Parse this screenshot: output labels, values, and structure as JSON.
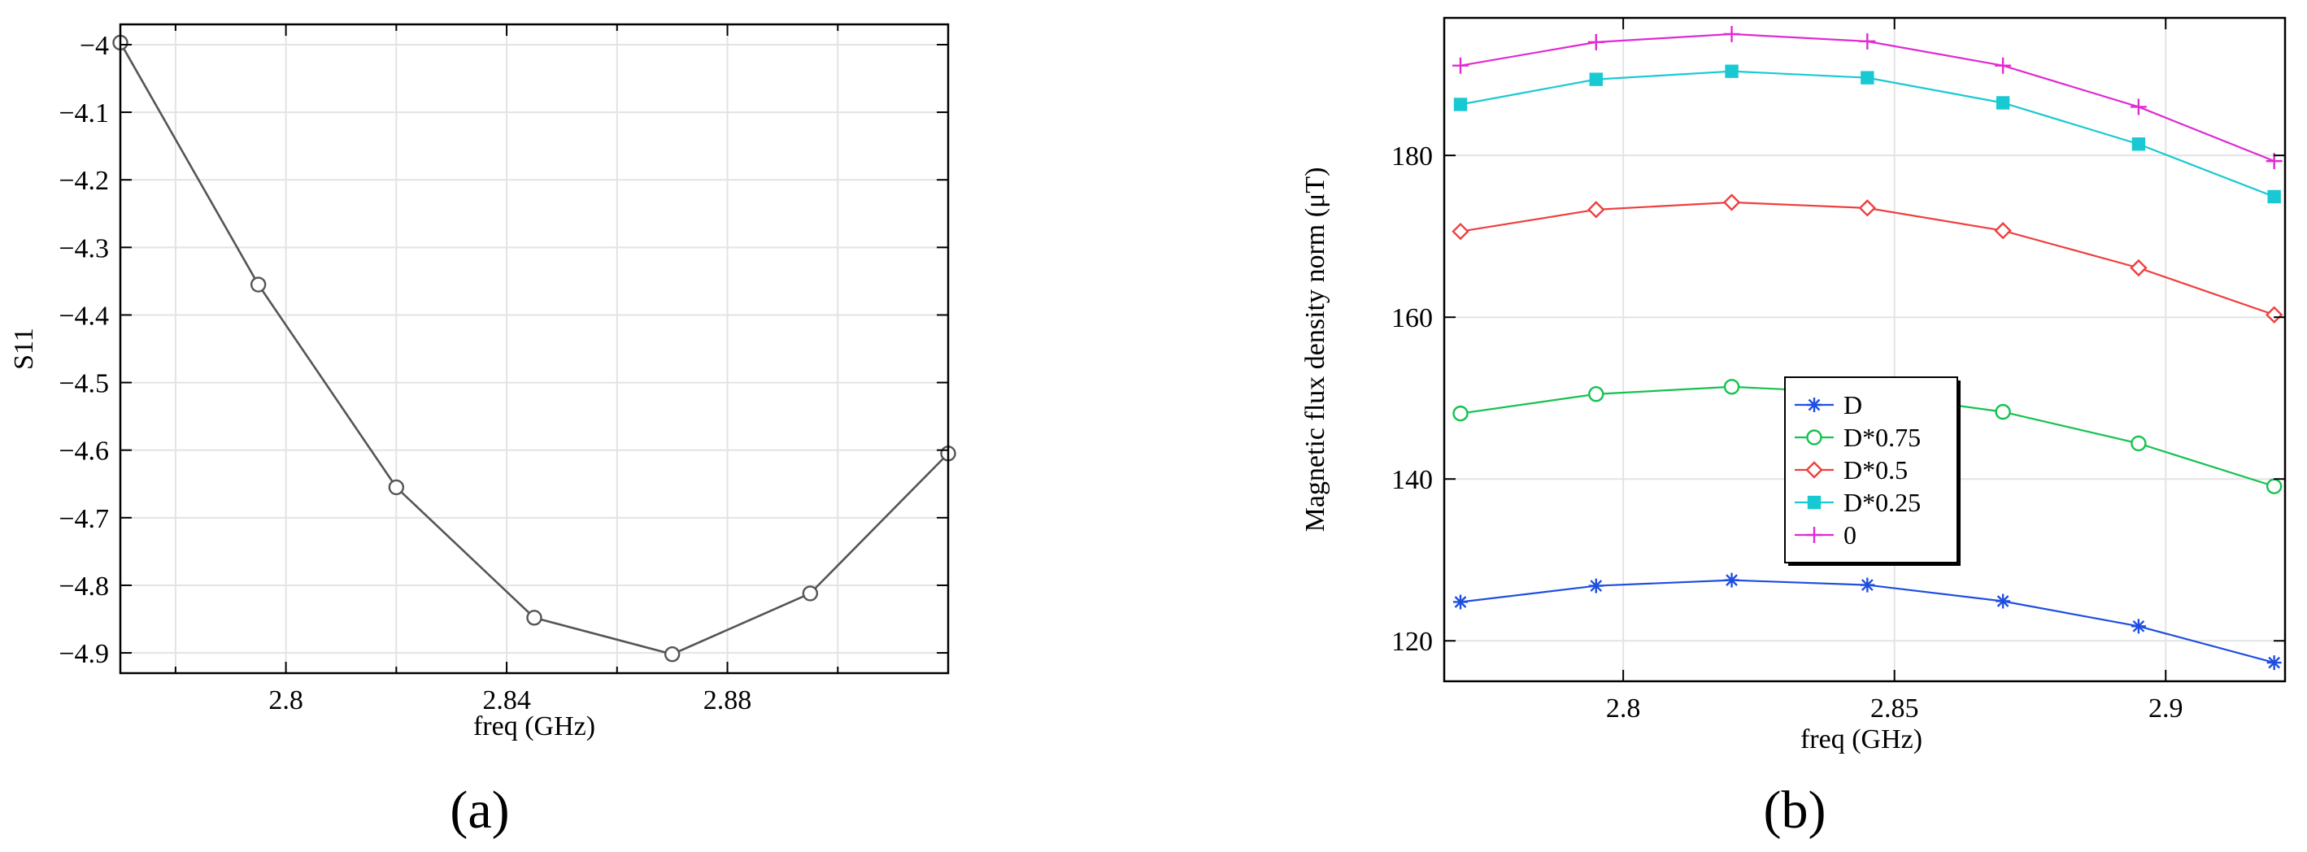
{
  "chart_data": [
    {
      "type": "line",
      "panel_label": "(a)",
      "title": "",
      "xlabel": "freq (GHz)",
      "ylabel": "S11",
      "xlim": [
        2.77,
        2.92
      ],
      "ylim": [
        -4.93,
        -3.97
      ],
      "xticks": [
        2.8,
        2.84,
        2.88
      ],
      "xtick_labels": [
        "2.8",
        "2.84",
        "2.88"
      ],
      "xgrid_extra": [
        2.78,
        2.82,
        2.86,
        2.9
      ],
      "yticks": [
        -4.0,
        -4.1,
        -4.2,
        -4.3,
        -4.4,
        -4.5,
        -4.6,
        -4.7,
        -4.8,
        -4.9
      ],
      "ytick_labels": [
        "−4",
        "−4.1",
        "−4.2",
        "−4.3",
        "−4.4",
        "−4.5",
        "−4.6",
        "−4.7",
        "−4.8",
        "−4.9"
      ],
      "grid": true,
      "legend": "none",
      "series": [
        {
          "color": "#555555",
          "marker": "circle",
          "x": [
            2.77,
            2.795,
            2.82,
            2.845,
            2.87,
            2.895,
            2.92
          ],
          "y": [
            -3.997,
            -4.355,
            -4.655,
            -4.848,
            -4.902,
            -4.812,
            -4.605
          ]
        }
      ]
    },
    {
      "type": "line",
      "panel_label": "(b)",
      "title": "",
      "xlabel": "freq (GHz)",
      "ylabel": "Magnetic flux density norm (μT)",
      "xlim": [
        2.767,
        2.922
      ],
      "ylim": [
        115,
        197
      ],
      "xticks": [
        2.8,
        2.85,
        2.9
      ],
      "xtick_labels": [
        "2.8",
        "2.85",
        "2.9"
      ],
      "yticks": [
        120,
        140,
        160,
        180
      ],
      "ytick_labels": [
        "120",
        "140",
        "160",
        "180"
      ],
      "grid": true,
      "legend": "center",
      "series": [
        {
          "name": "D",
          "color": "#1f4fe0",
          "marker": "asterisk",
          "x": [
            2.77,
            2.795,
            2.82,
            2.845,
            2.87,
            2.895,
            2.92
          ],
          "y": [
            124.8,
            126.8,
            127.5,
            126.9,
            124.9,
            121.8,
            117.3
          ]
        },
        {
          "name": "D*0.75",
          "color": "#14c250",
          "marker": "circle",
          "x": [
            2.77,
            2.795,
            2.82,
            2.845,
            2.87,
            2.895,
            2.92
          ],
          "y": [
            148.1,
            150.5,
            151.4,
            150.6,
            148.3,
            144.4,
            139.1
          ]
        },
        {
          "name": "D*0.5",
          "color": "#ef3f3f",
          "marker": "diamond",
          "x": [
            2.77,
            2.795,
            2.82,
            2.845,
            2.87,
            2.895,
            2.92
          ],
          "y": [
            170.6,
            173.3,
            174.2,
            173.5,
            170.7,
            166.1,
            160.3
          ]
        },
        {
          "name": "D*0.25",
          "color": "#18c9d3",
          "marker": "square",
          "x": [
            2.77,
            2.795,
            2.82,
            2.845,
            2.87,
            2.895,
            2.92
          ],
          "y": [
            186.3,
            189.4,
            190.4,
            189.6,
            186.5,
            181.4,
            174.9
          ]
        },
        {
          "name": "0",
          "color": "#e02ad3",
          "marker": "plus",
          "x": [
            2.77,
            2.795,
            2.82,
            2.845,
            2.87,
            2.895,
            2.92
          ],
          "y": [
            191.1,
            194.0,
            195.0,
            194.1,
            191.1,
            186.0,
            179.3
          ]
        }
      ]
    }
  ]
}
